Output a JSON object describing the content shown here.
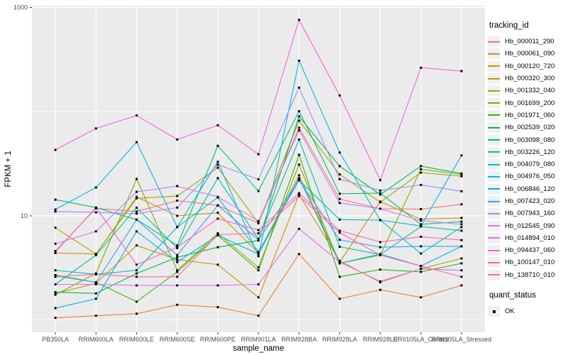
{
  "figure": {
    "background": "#FFFFFF",
    "panel_background": "#EBEBEB",
    "grid_color": "#FFFFFF",
    "axis_text_color": "#4D4D4D",
    "title_color": "#000000",
    "legend_key_background": "#F0F0F0",
    "point_color": "#000000"
  },
  "chart_data": {
    "type": "line",
    "title": "",
    "xlabel": "sample_name",
    "ylabel": "FPKM + 1",
    "y_scale": "log10",
    "ylim": [
      0.8,
      1050
    ],
    "grid": "on",
    "legend_position": "right",
    "point_marker": "black-square",
    "y_major_ticks": [
      {
        "value": 10,
        "label": "10"
      },
      {
        "value": 1000,
        "label": "1000"
      }
    ],
    "y_minor_gridlines": [
      1,
      100
    ],
    "categories": [
      "PB350LA",
      "RRIM600LA",
      "RRIM600LE",
      "RRIM600SE",
      "RRIM600PE",
      "RRIM901LA",
      "RRIM928BA",
      "RRIM928LA",
      "RRIM928LE",
      "RRII105LA_Control",
      "RRII105LA_Stressed"
    ],
    "series": [
      {
        "name": "Hb_000011_290",
        "color": "#F8766D",
        "values": [
          4.6,
          11.8,
          11.0,
          14.0,
          12.6,
          8.5,
          70,
          14.5,
          11.7,
          11.6,
          12.9
        ]
      },
      {
        "name": "Hb_000061_090",
        "color": "#EA8331",
        "values": [
          1.05,
          1.1,
          1.15,
          1.4,
          1.33,
          1.1,
          4.3,
          1.6,
          1.95,
          1.65,
          2.15
        ]
      },
      {
        "name": "Hb_000120_720",
        "color": "#D89000",
        "values": [
          4.4,
          4.3,
          15.2,
          10.0,
          10.7,
          4.4,
          24.5,
          3.6,
          13.7,
          9.3,
          9.55
        ]
      },
      {
        "name": "Hb_000320_300",
        "color": "#C09B00",
        "values": [
          1.8,
          2.25,
          5.2,
          3.8,
          3.4,
          1.65,
          16.0,
          3.7,
          2.3,
          3.1,
          3.9
        ]
      },
      {
        "name": "Hb_001332_040",
        "color": "#A3A500",
        "values": [
          7.7,
          4.3,
          14.7,
          15.5,
          29.0,
          8.5,
          82,
          25.0,
          13.5,
          26.0,
          24.0
        ]
      },
      {
        "name": "Hb_001699_200",
        "color": "#7CAE00",
        "values": [
          1.75,
          2.8,
          22.6,
          3.0,
          6.8,
          3.2,
          31.0,
          3.5,
          4.2,
          28.0,
          25.0
        ]
      },
      {
        "name": "Hb_001971_060",
        "color": "#39B600",
        "values": [
          2.7,
          2.3,
          1.5,
          2.9,
          6.5,
          3.0,
          38.5,
          2.6,
          3.05,
          2.9,
          3.5
        ]
      },
      {
        "name": "Hb_002539_020",
        "color": "#00BB4E",
        "values": [
          1.85,
          1.8,
          2.8,
          4.0,
          5.0,
          5.8,
          90,
          30.0,
          16.0,
          30.0,
          25.5
        ]
      },
      {
        "name": "Hb_003098_080",
        "color": "#00BF7D",
        "values": [
          14.3,
          12.0,
          9.2,
          5.2,
          47.0,
          17.3,
          101,
          16.3,
          16.5,
          8.3,
          8.8
        ]
      },
      {
        "name": "Hb_003226_120",
        "color": "#00C1A3",
        "values": [
          2.2,
          4.2,
          12.0,
          4.9,
          23.0,
          6.0,
          54,
          5.05,
          4.25,
          7.9,
          7.2
        ]
      },
      {
        "name": "Hb_004079_080",
        "color": "#00BFC4",
        "values": [
          3.0,
          2.75,
          3.0,
          7.8,
          15.0,
          4.5,
          22.0,
          9.2,
          9.1,
          4.35,
          7.8
        ]
      },
      {
        "name": "Hb_004976_050",
        "color": "#00BAE0",
        "values": [
          11.5,
          18.7,
          51.0,
          7.8,
          33.0,
          4.1,
          308,
          40.5,
          9.1,
          8.0,
          38.0
        ]
      },
      {
        "name": "Hb_006846_120",
        "color": "#00B0F6",
        "values": [
          1.3,
          1.6,
          7.1,
          3.6,
          6.5,
          4.3,
          23.0,
          3.5,
          4.3,
          3.3,
          5.1
        ]
      },
      {
        "name": "Hb_007423_020",
        "color": "#35A2FF",
        "values": [
          2.65,
          2.3,
          9.2,
          4.2,
          12.6,
          5.9,
          22.0,
          5.9,
          5.0,
          5.1,
          5.1
        ]
      },
      {
        "name": "Hb_007943_160",
        "color": "#9590FF",
        "values": [
          11.0,
          10.8,
          10.5,
          12.0,
          31.0,
          22.4,
          170,
          22.5,
          17.5,
          19.8,
          17.2
        ]
      },
      {
        "name": "Hb_012545_090",
        "color": "#C77CFF",
        "values": [
          5.4,
          7.1,
          17.0,
          19.3,
          15.2,
          8.9,
          66,
          13.3,
          11.7,
          9.0,
          8.3
        ]
      },
      {
        "name": "Hb_014894_010",
        "color": "#E76BF3",
        "values": [
          2.2,
          2.2,
          2.15,
          2.15,
          2.15,
          2.2,
          7.5,
          3.6,
          2.35,
          3.1,
          3.0
        ]
      },
      {
        "name": "Hb_094437_060",
        "color": "#FA62DB",
        "values": [
          43,
          69,
          92,
          54,
          74,
          39,
          760,
          143,
          22,
          264,
          245
        ]
      },
      {
        "name": "Hb_100147_010",
        "color": "#FF62BC",
        "values": [
          4.5,
          12.0,
          3.4,
          5.0,
          9.4,
          7.3,
          16.5,
          7.2,
          5.6,
          6.3,
          5.85
        ]
      },
      {
        "name": "Hb_138710_010",
        "color": "#FF6A98",
        "values": [
          2.6,
          2.75,
          2.6,
          2.6,
          6.6,
          6.8,
          15.5,
          6.9,
          4.2,
          3.3,
          2.6
        ]
      }
    ],
    "legend": {
      "tracking_title": "tracking_id",
      "quant_title": "quant_status",
      "quant_items": [
        {
          "label": "OK",
          "marker": "black-square"
        }
      ]
    }
  }
}
